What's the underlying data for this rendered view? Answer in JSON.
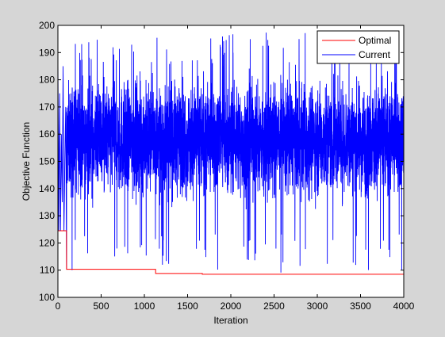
{
  "chart_data": {
    "type": "line",
    "title": "",
    "xlabel": "Iteration",
    "ylabel": "Objective Function",
    "xlim": [
      0,
      4000
    ],
    "ylim": [
      100,
      200
    ],
    "xticks": [
      0,
      500,
      1000,
      1500,
      2000,
      2500,
      3000,
      3500,
      4000
    ],
    "yticks": [
      100,
      110,
      120,
      130,
      140,
      150,
      160,
      170,
      180,
      190,
      200
    ],
    "grid": false,
    "legend_position": "top-right",
    "series": [
      {
        "name": "Optimal",
        "color": "#ff0000",
        "kind": "step",
        "x": [
          0,
          30,
          100,
          1130,
          1670,
          4000
        ],
        "y": [
          124.5,
          124.5,
          110.3,
          108.8,
          108.5,
          108.5
        ]
      },
      {
        "name": "Current",
        "color": "#0000ff",
        "kind": "noisy",
        "n_points": 4000,
        "mean": 158,
        "typical_range": [
          130,
          185
        ],
        "y_min": 108.5,
        "y_max": 198,
        "x_start": [
          0,
          10,
          20,
          30,
          40,
          50,
          60,
          70,
          80,
          90,
          100
        ],
        "y_start": [
          188,
          124.5,
          175,
          124.5,
          160,
          135,
          185,
          124.5,
          150,
          170,
          110.3
        ]
      }
    ]
  }
}
